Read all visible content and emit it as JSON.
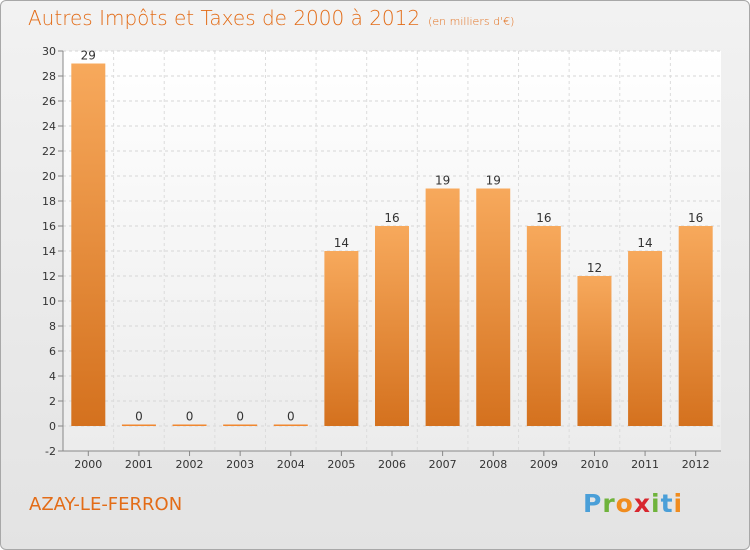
{
  "chart_data": {
    "type": "bar",
    "title": "Autres Impôts et Taxes de 2000 à 2012",
    "subtitle": "(en milliers d'€)",
    "categories": [
      "2000",
      "2001",
      "2002",
      "2003",
      "2004",
      "2005",
      "2006",
      "2007",
      "2008",
      "2009",
      "2010",
      "2011",
      "2012"
    ],
    "values": [
      29,
      0,
      0,
      0,
      0,
      14,
      16,
      19,
      19,
      16,
      12,
      14,
      16
    ],
    "ylim": [
      -2,
      30
    ],
    "yticks": [
      -2,
      0,
      2,
      4,
      6,
      8,
      10,
      12,
      14,
      16,
      18,
      20,
      22,
      24,
      26,
      28,
      30
    ],
    "grid": true,
    "bar_color": "#f0872f"
  },
  "place_name": "AZAY-LE-FERRON",
  "logo": {
    "text": "Proxiti",
    "letters": [
      "P",
      "r",
      "o",
      "x",
      "i",
      "t",
      "i"
    ],
    "colors": [
      "#4a9fd8",
      "#6fb33c",
      "#f08c1e",
      "#d8262e",
      "#6fb33c",
      "#4a9fd8",
      "#f08c1e"
    ]
  }
}
